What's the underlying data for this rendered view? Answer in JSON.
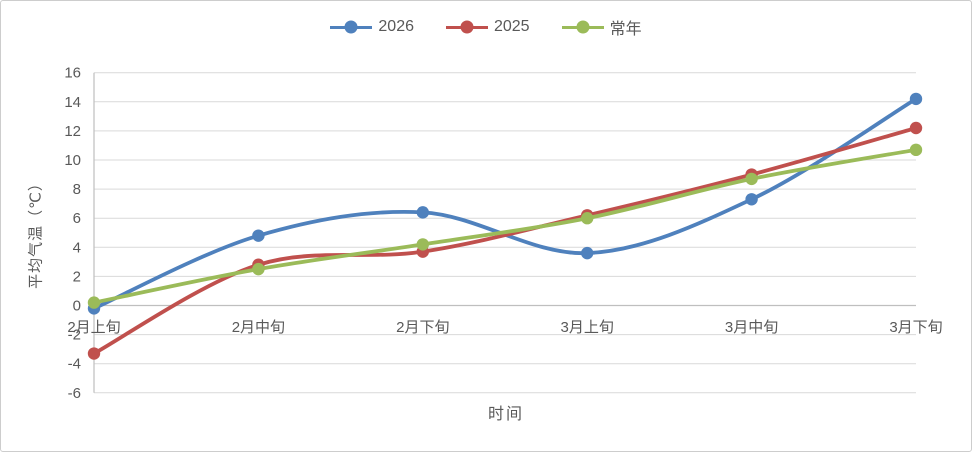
{
  "chart_data": {
    "type": "line",
    "smooth": true,
    "title": "",
    "xlabel": "时间",
    "ylabel": "平均气温（℃）",
    "categories": [
      "2月上旬",
      "2月中旬",
      "2月下旬",
      "3月上旬",
      "3月中旬",
      "3月下旬"
    ],
    "series": [
      {
        "name": "2026",
        "color": "#4F81BD",
        "values": [
          -0.2,
          4.8,
          6.4,
          3.6,
          7.3,
          14.2
        ]
      },
      {
        "name": "2025",
        "color": "#C0504D",
        "values": [
          -3.3,
          2.8,
          3.7,
          6.2,
          9.0,
          12.2
        ]
      },
      {
        "name": "常年",
        "color": "#9BBB59",
        "values": [
          0.2,
          2.5,
          4.2,
          6.0,
          8.7,
          10.7
        ]
      }
    ],
    "ylim": [
      -6,
      16
    ],
    "ytick_step": 2,
    "ytick_labels": [
      "16",
      "14",
      "12",
      "10",
      "8",
      "6",
      "4",
      "2",
      "0",
      "-2",
      "-4",
      "-6"
    ],
    "grid": true,
    "legend_position": "top"
  },
  "styles": {
    "axis_text_color": "#595959",
    "gridline_color": "#D9D9D9",
    "axis_line_color": "#BFBFBF",
    "background": "#FFFFFF",
    "border_color": "#CDCDCD"
  }
}
